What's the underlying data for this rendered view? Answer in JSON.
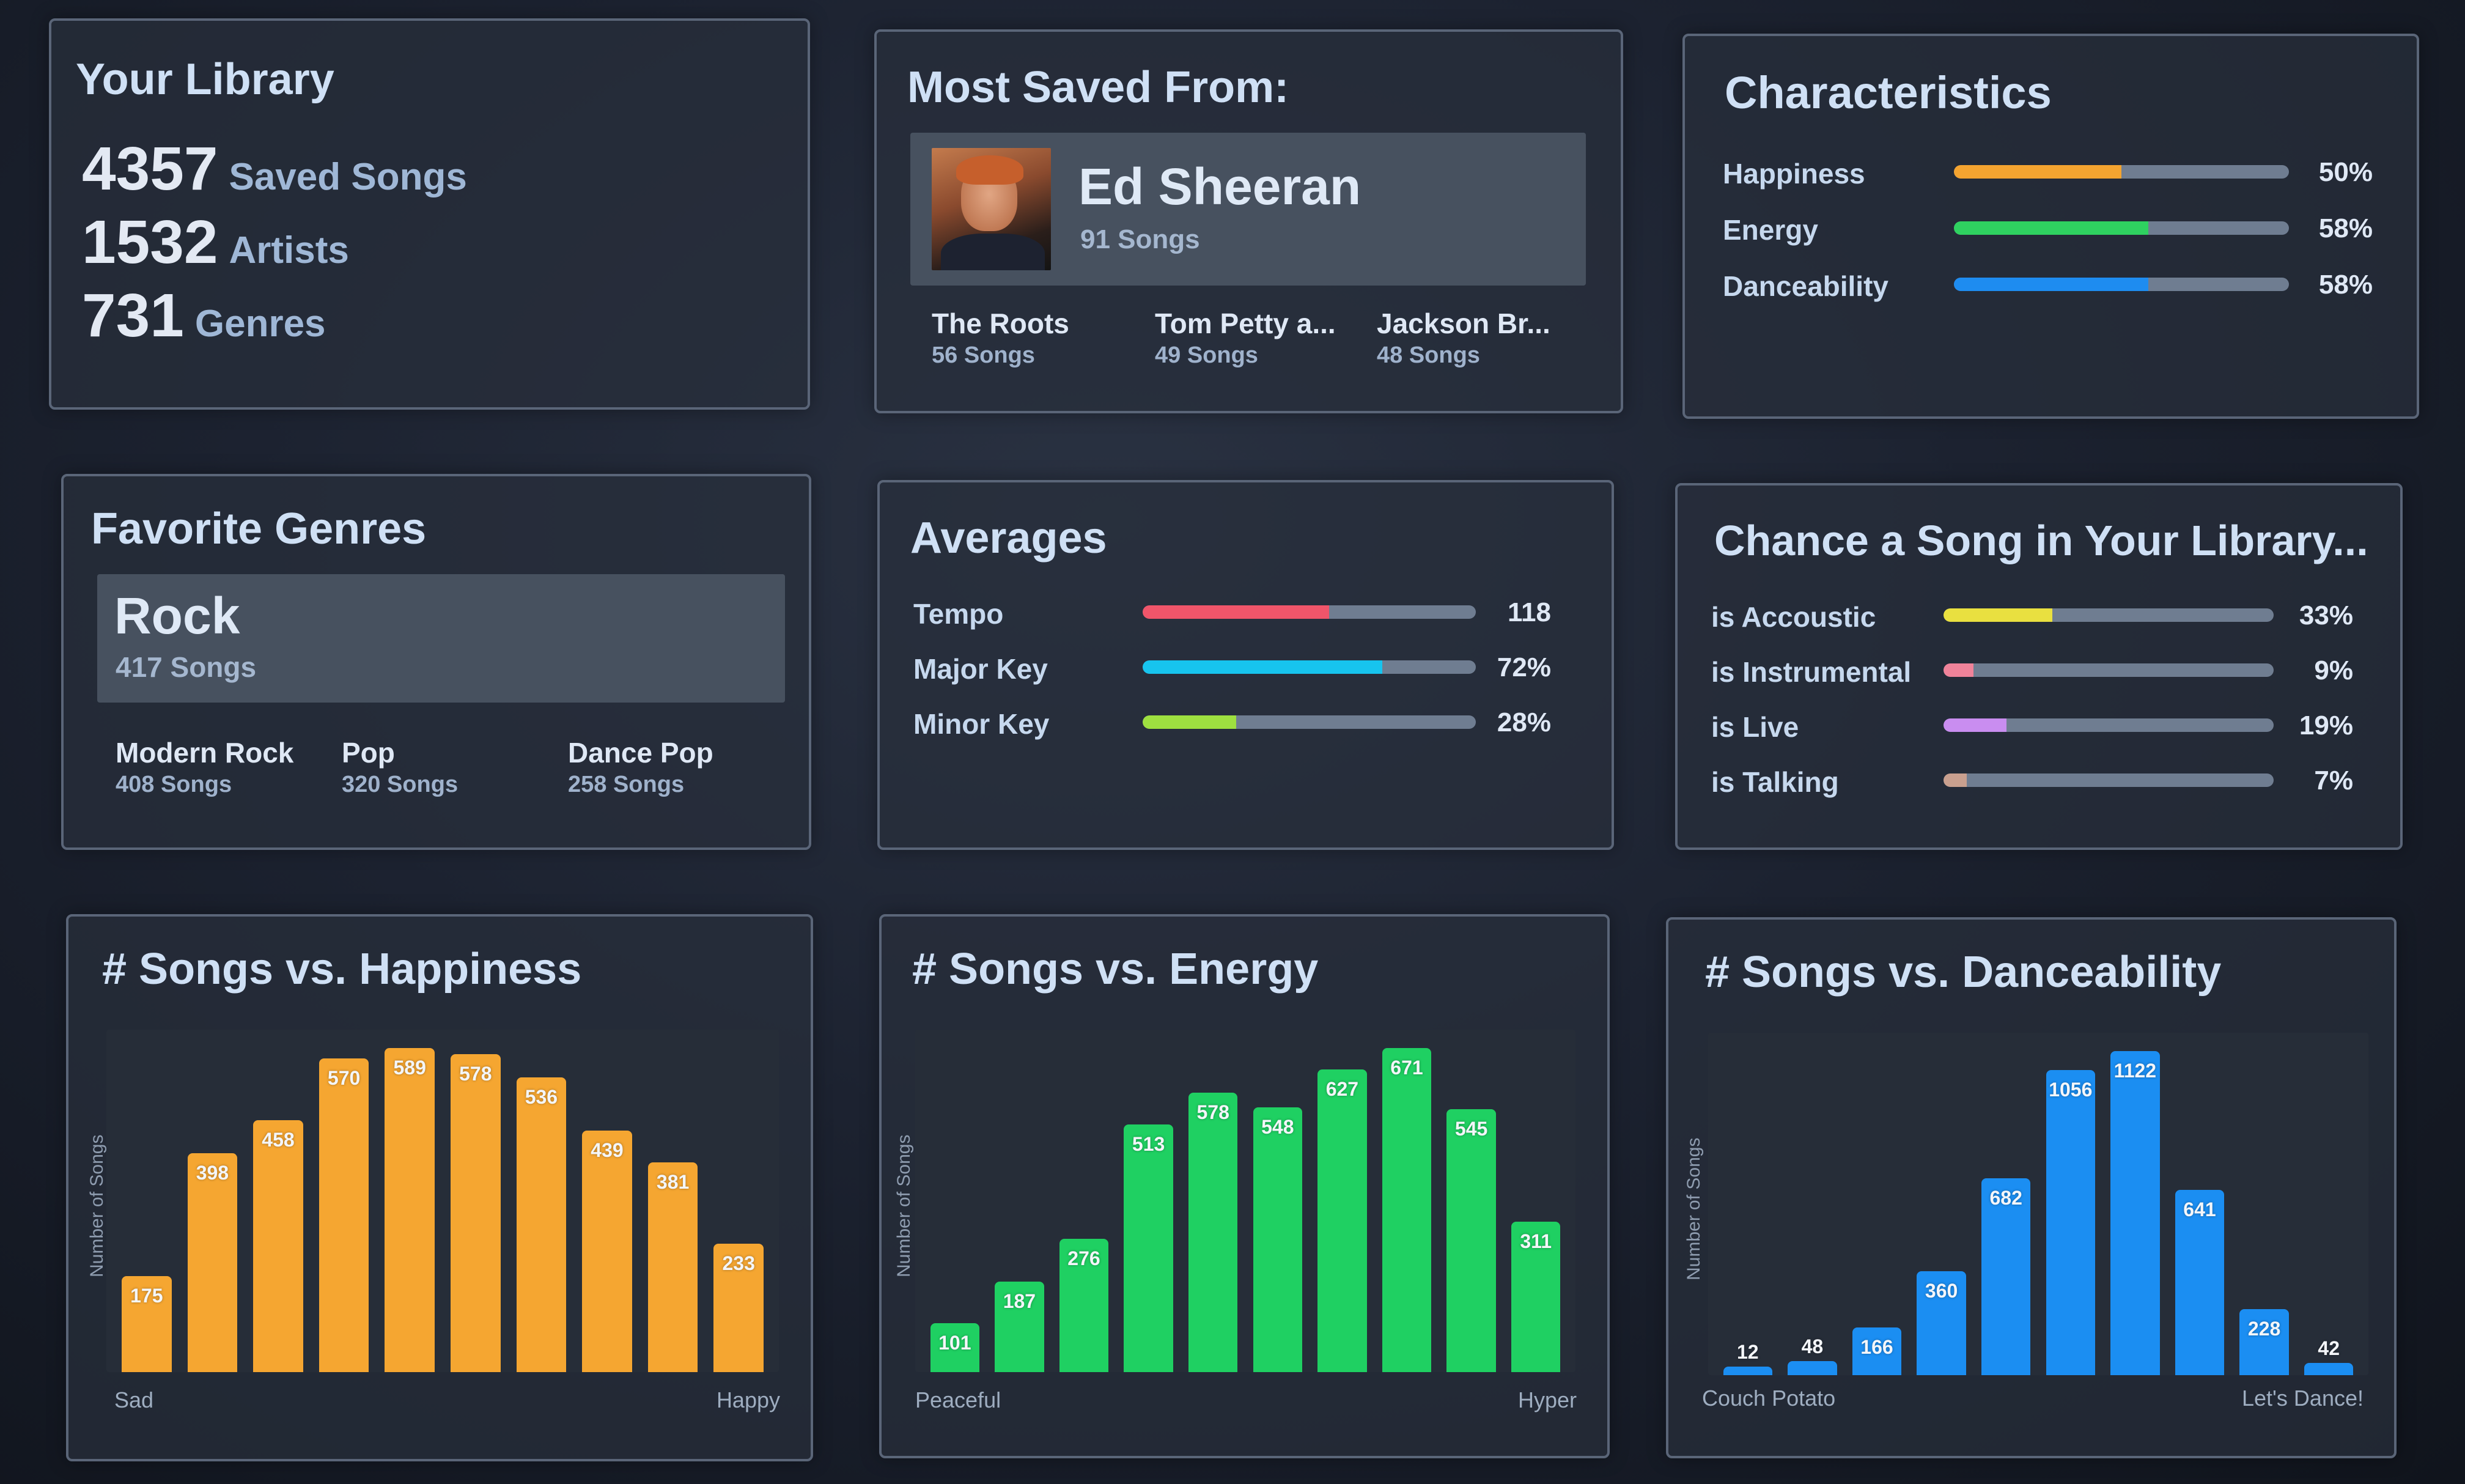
{
  "library": {
    "title": "Your Library",
    "stats": [
      {
        "value": "4357",
        "label": "Saved Songs"
      },
      {
        "value": "1532",
        "label": "Artists"
      },
      {
        "value": "731",
        "label": "Genres"
      }
    ]
  },
  "most_saved": {
    "title": "Most Saved From:",
    "top": {
      "name": "Ed Sheeran",
      "count": "91 Songs"
    },
    "others": [
      {
        "name": "The Roots",
        "count": "56 Songs"
      },
      {
        "name": "Tom Petty a...",
        "count": "49 Songs"
      },
      {
        "name": "Jackson Br...",
        "count": "48 Songs"
      }
    ]
  },
  "characteristics": {
    "title": "Characteristics",
    "rows": [
      {
        "label": "Happiness",
        "value": "50%",
        "fraction": 0.5,
        "color": "#f4a430"
      },
      {
        "label": "Energy",
        "value": "58%",
        "fraction": 0.58,
        "color": "#2fd160"
      },
      {
        "label": "Danceability",
        "value": "58%",
        "fraction": 0.58,
        "color": "#1e8cf0"
      }
    ]
  },
  "genres": {
    "title": "Favorite Genres",
    "top": {
      "name": "Rock",
      "count": "417 Songs"
    },
    "others": [
      {
        "name": "Modern Rock",
        "count": "408 Songs"
      },
      {
        "name": "Pop",
        "count": "320 Songs"
      },
      {
        "name": "Dance Pop",
        "count": "258 Songs"
      }
    ]
  },
  "averages": {
    "title": "Averages",
    "rows": [
      {
        "label": "Tempo",
        "value": "118",
        "fraction": 0.56,
        "color": "#f0556a"
      },
      {
        "label": "Major Key",
        "value": "72%",
        "fraction": 0.72,
        "color": "#17c4ee"
      },
      {
        "label": "Minor Key",
        "value": "28%",
        "fraction": 0.28,
        "color": "#9ee040"
      }
    ]
  },
  "chance": {
    "title": "Chance a Song in Your Library...",
    "rows": [
      {
        "label": "is Accoustic",
        "value": "33%",
        "fraction": 0.33,
        "color": "#e9e040"
      },
      {
        "label": "is Instrumental",
        "value": "9%",
        "fraction": 0.09,
        "color": "#f0839a"
      },
      {
        "label": "is Live",
        "value": "19%",
        "fraction": 0.19,
        "color": "#c98df0"
      },
      {
        "label": "is Talking",
        "value": "7%",
        "fraction": 0.07,
        "color": "#c9a08f"
      }
    ]
  },
  "chart_data": [
    {
      "type": "bar",
      "title": "# Songs vs. Happiness",
      "ylabel": "Number of Songs",
      "x_start_label": "Sad",
      "x_end_label": "Happy",
      "values": [
        175,
        398,
        458,
        570,
        589,
        578,
        536,
        439,
        381,
        233
      ],
      "color": "#f5a631"
    },
    {
      "type": "bar",
      "title": "# Songs vs. Energy",
      "ylabel": "Number of Songs",
      "x_start_label": "Peaceful",
      "x_end_label": "Hyper",
      "values": [
        101,
        187,
        276,
        513,
        578,
        548,
        627,
        671,
        545,
        311
      ],
      "color": "#1fd062"
    },
    {
      "type": "bar",
      "title": "# Songs vs. Danceability",
      "ylabel": "Number of Songs",
      "x_start_label": "Couch Potato",
      "x_end_label": "Let's Dance!",
      "values": [
        12,
        48,
        166,
        360,
        682,
        1056,
        1122,
        641,
        228,
        42
      ],
      "color": "#1b8ef2"
    }
  ]
}
